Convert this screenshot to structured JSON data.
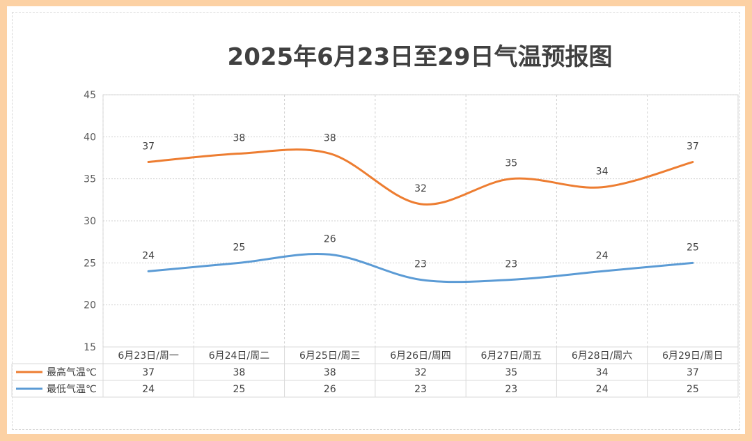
{
  "chart_data": {
    "type": "line",
    "title": "2025年6月23日至29日气温预报图",
    "categories": [
      "6月23日/周一",
      "6月24日/周二",
      "6月25日/周三",
      "6月26日/周四",
      "6月27日/周五",
      "6月28日/周六",
      "6月29日/周日"
    ],
    "series": [
      {
        "name": "最高气温℃",
        "values": [
          37,
          38,
          38,
          32,
          35,
          34,
          37
        ],
        "color": "#ed7d31"
      },
      {
        "name": "最低气温℃",
        "values": [
          24,
          25,
          26,
          23,
          23,
          24,
          25
        ],
        "color": "#5b9bd5"
      }
    ],
    "ylim": [
      15,
      45
    ],
    "yticks": [
      15,
      20,
      25,
      30,
      35,
      40,
      45
    ],
    "grid": true,
    "smooth": true,
    "data_labels": true,
    "legend": "data-table"
  }
}
